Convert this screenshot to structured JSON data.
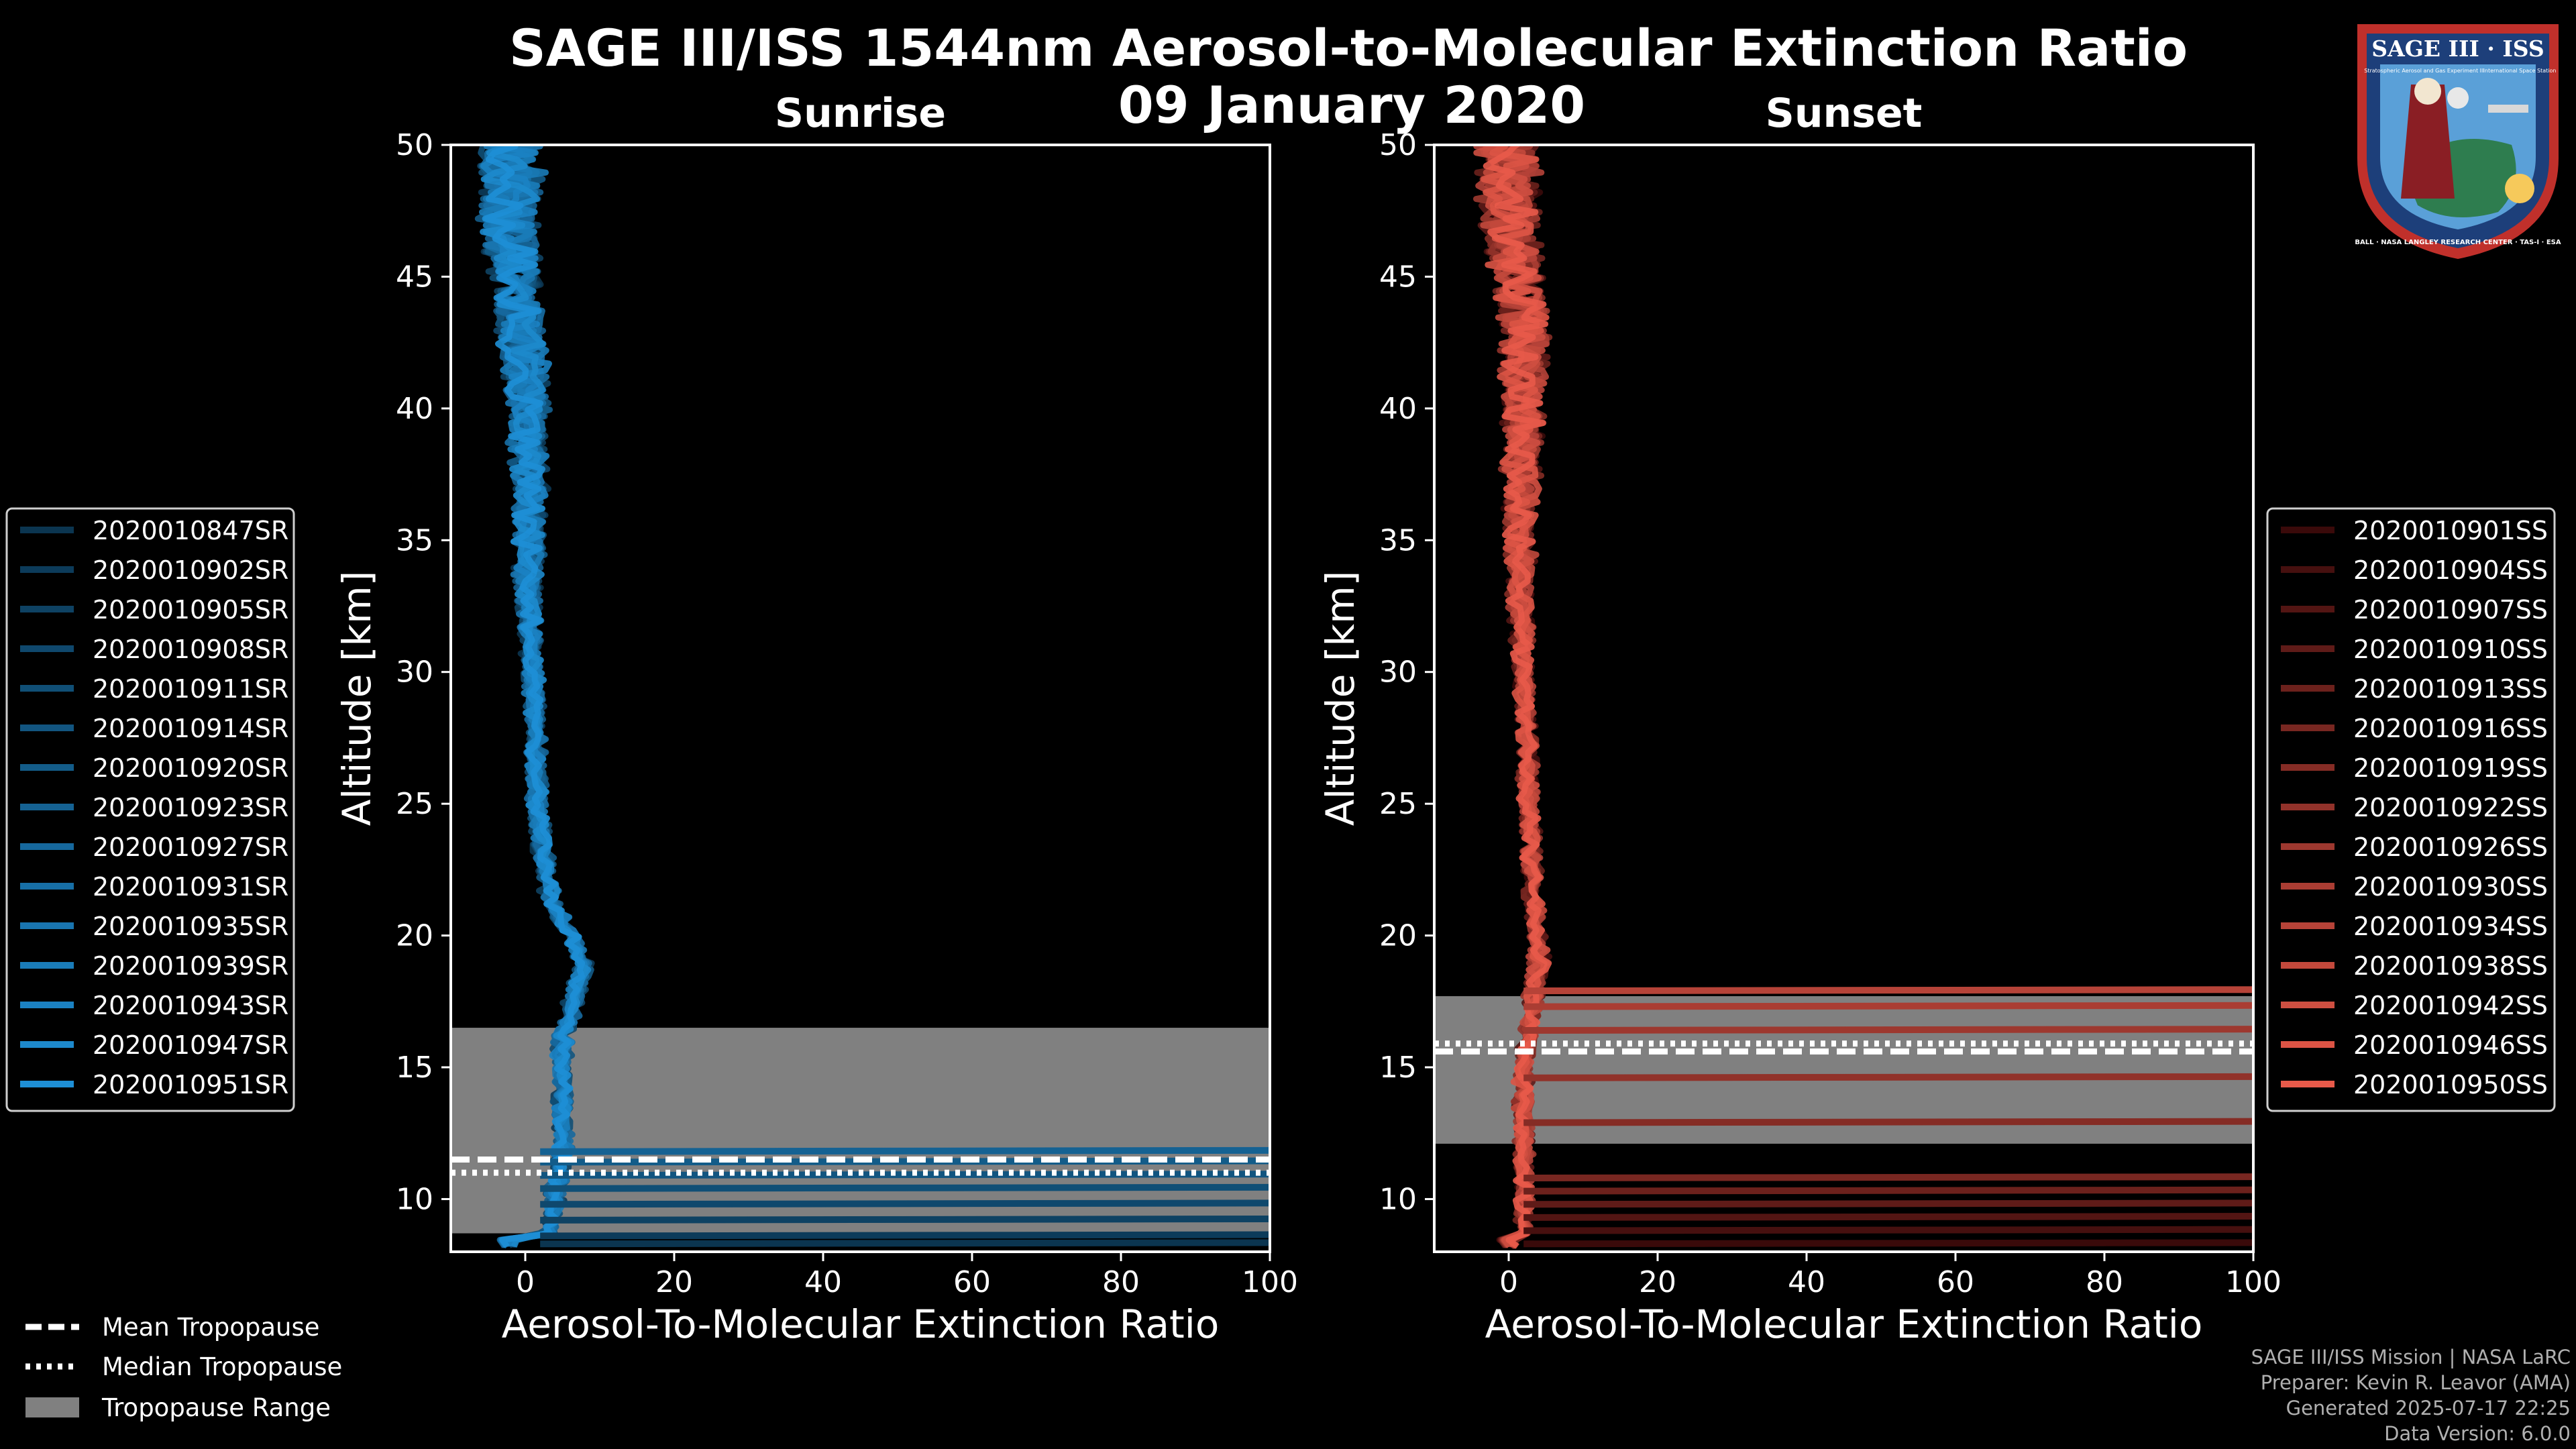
{
  "title": "SAGE III/ISS 1544nm Aerosol-to-Molecular Extinction Ratio",
  "date": "09 January 2020",
  "logo": {
    "top": "SAGE III · ISS",
    "sub": "Stratospheric Aerosol and Gas Experiment III",
    "right": "International Space Station",
    "ring": "BALL · NASA LANGLEY RESEARCH CENTER · TAS-I · ESA"
  },
  "credits": [
    "SAGE III/ISS Mission | NASA LaRC",
    "Preparer: Kevin R. Leavor (AMA)",
    "Generated 2025-07-17 22:25",
    "Data Version: 6.0.0"
  ],
  "colors": {
    "sunrise": "#1e8fd6",
    "sunset": "#e85a4a",
    "background": "#000000",
    "range": "#808080"
  },
  "tropopause_legend": [
    {
      "label": "Mean Tropopause",
      "style": "dashed"
    },
    {
      "label": "Median Tropopause",
      "style": "dotted"
    },
    {
      "label": "Tropopause Range",
      "style": "patch"
    }
  ],
  "chart_data": [
    {
      "type": "line",
      "panel": "Sunrise",
      "title": "Sunrise",
      "xlabel": "Aerosol-To-Molecular Extinction Ratio",
      "ylabel": "Altitude [km]",
      "xlim": [
        -10,
        100
      ],
      "ylim": [
        8,
        50
      ],
      "xticks": [
        0,
        20,
        40,
        60,
        80,
        100
      ],
      "yticks": [
        10,
        15,
        20,
        25,
        30,
        35,
        40,
        45,
        50
      ],
      "tropopause": {
        "mean_km": 11.5,
        "median_km": 11.0,
        "range_km": [
          8.7,
          16.5
        ]
      },
      "median_profile_altitude_km": [
        8.5,
        10,
        11,
        12,
        13,
        14,
        15,
        16,
        17,
        18,
        19,
        20,
        21,
        22,
        23,
        24,
        25,
        27,
        30,
        33,
        36,
        40,
        44,
        47,
        50
      ],
      "median_profile_ratio": [
        3.0,
        4.0,
        4.5,
        5.0,
        5.0,
        5.0,
        5.0,
        5.0,
        6.0,
        7.0,
        8.0,
        6.0,
        4.0,
        3.0,
        2.5,
        2.0,
        1.5,
        1.5,
        1.0,
        0.5,
        0.5,
        0.5,
        -1.0,
        -2.0,
        -2.0
      ],
      "series": [
        {
          "name": "2020010847SR"
        },
        {
          "name": "2020010902SR"
        },
        {
          "name": "2020010905SR"
        },
        {
          "name": "2020010908SR"
        },
        {
          "name": "2020010911SR"
        },
        {
          "name": "2020010914SR"
        },
        {
          "name": "2020010920SR"
        },
        {
          "name": "2020010923SR"
        },
        {
          "name": "2020010927SR"
        },
        {
          "name": "2020010931SR"
        },
        {
          "name": "2020010935SR"
        },
        {
          "name": "2020010939SR"
        },
        {
          "name": "2020010943SR"
        },
        {
          "name": "2020010947SR"
        },
        {
          "name": "2020010951SR"
        }
      ],
      "high_excursions_km": [
        8.3,
        8.6,
        9.2,
        9.8,
        10.4,
        10.9,
        11.4,
        11.8
      ]
    },
    {
      "type": "line",
      "panel": "Sunset",
      "title": "Sunset",
      "xlabel": "Aerosol-To-Molecular Extinction Ratio",
      "ylabel": "Altitude [km]",
      "xlim": [
        -10,
        100
      ],
      "ylim": [
        8,
        50
      ],
      "xticks": [
        0,
        20,
        40,
        60,
        80,
        100
      ],
      "yticks": [
        10,
        15,
        20,
        25,
        30,
        35,
        40,
        45,
        50
      ],
      "tropopause": {
        "mean_km": 15.6,
        "median_km": 15.9,
        "range_km": [
          12.1,
          17.7
        ]
      },
      "median_profile_altitude_km": [
        8.5,
        10,
        11,
        12,
        13,
        14,
        15,
        16,
        17,
        18,
        19,
        20,
        21,
        22,
        23,
        24,
        25,
        27,
        30,
        33,
        36,
        40,
        44,
        47,
        50
      ],
      "median_profile_ratio": [
        2.0,
        2.0,
        2.0,
        2.0,
        2.0,
        2.0,
        2.0,
        2.5,
        3.0,
        3.5,
        4.0,
        4.0,
        3.5,
        3.0,
        3.0,
        3.0,
        2.5,
        2.5,
        2.0,
        1.5,
        1.5,
        2.0,
        2.0,
        0.0,
        0.0
      ],
      "series": [
        {
          "name": "2020010901SS"
        },
        {
          "name": "2020010904SS"
        },
        {
          "name": "2020010907SS"
        },
        {
          "name": "2020010910SS"
        },
        {
          "name": "2020010913SS"
        },
        {
          "name": "2020010916SS"
        },
        {
          "name": "2020010919SS"
        },
        {
          "name": "2020010922SS"
        },
        {
          "name": "2020010926SS"
        },
        {
          "name": "2020010930SS"
        },
        {
          "name": "2020010934SS"
        },
        {
          "name": "2020010938SS"
        },
        {
          "name": "2020010942SS"
        },
        {
          "name": "2020010946SS"
        },
        {
          "name": "2020010950SS"
        }
      ],
      "high_excursions_km": [
        8.3,
        8.8,
        9.3,
        9.8,
        10.3,
        10.8,
        12.9,
        14.6,
        16.4,
        17.3,
        17.9
      ]
    }
  ]
}
